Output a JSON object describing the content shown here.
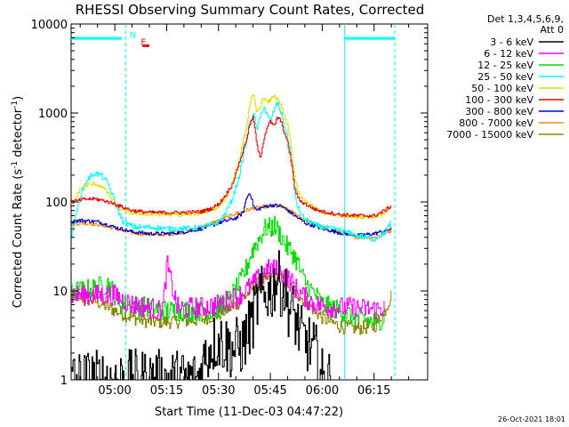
{
  "chart_data": {
    "type": "line",
    "title": "RHESSI Observing Summary Count Rates, Corrected",
    "xlabel": "Start Time (11-Dec-03 04:47:22)",
    "ylabel_main": "Corrected Count Rate (s",
    "ylabel_sup1": "-1",
    "ylabel_mid": " detector",
    "ylabel_sup2": "-1",
    "ylabel_end": ")",
    "yscale": "log",
    "ylim": [
      1,
      10000
    ],
    "xlim_minutes": [
      47.37,
      150.5
    ],
    "x_ticks": [
      {
        "min": 60,
        "label": "05:00"
      },
      {
        "min": 75,
        "label": "05:15"
      },
      {
        "min": 90,
        "label": "05:30"
      },
      {
        "min": 105,
        "label": "05:45"
      },
      {
        "min": 120,
        "label": "06:00"
      },
      {
        "min": 135,
        "label": "06:15"
      }
    ],
    "y_ticks": [
      {
        "value": 1,
        "label": "1"
      },
      {
        "value": 10,
        "label": "10"
      },
      {
        "value": 100,
        "label": "100"
      },
      {
        "value": 1000,
        "label": "1000"
      },
      {
        "value": 10000,
        "label": "10000"
      }
    ],
    "legend_header": [
      "Det 1,3,4,5,6,9,",
      "Att 0"
    ],
    "series": [
      {
        "name": "3 - 6 keV",
        "color": "#000000",
        "x": [
          47.4,
          50,
          55,
          60,
          65,
          70,
          75,
          77,
          78,
          80,
          84,
          86,
          88,
          90,
          94,
          97,
          99,
          100,
          101,
          102,
          103,
          104,
          105,
          106,
          107,
          108,
          109,
          110,
          111,
          112,
          114,
          116,
          118,
          120,
          123
        ],
        "y": [
          1,
          1,
          1,
          1,
          1,
          1,
          1,
          1,
          1,
          1,
          1,
          1.8,
          2.5,
          2.8,
          2.2,
          2.5,
          4,
          5,
          7,
          9,
          8,
          10,
          9,
          12,
          14,
          11,
          10,
          7,
          6,
          5,
          3,
          2.5,
          2,
          1,
          1
        ]
      },
      {
        "name": "6 - 12 keV",
        "color": "#ff00ff",
        "x": [
          47.4,
          60,
          62,
          65,
          70,
          72,
          73,
          74,
          75,
          78,
          80,
          82,
          85,
          88,
          90,
          93,
          96,
          99,
          101,
          103,
          105,
          107,
          108,
          110,
          112,
          114,
          116,
          118,
          120,
          124,
          128,
          132,
          136,
          138
        ],
        "y": [
          9,
          9,
          8,
          7,
          6.5,
          6,
          6,
          7,
          20,
          6.5,
          6.2,
          6.5,
          6.5,
          6.8,
          7,
          8,
          9,
          11,
          13,
          16,
          18,
          17,
          16,
          14,
          11,
          9,
          8,
          7,
          6.8,
          6.5,
          6.5,
          6.3,
          6.2,
          6.5
        ]
      },
      {
        "name": "12 - 25 keV",
        "color": "#00dd00",
        "x": [
          47.4,
          50,
          55,
          58,
          60,
          62,
          65,
          70,
          75,
          80,
          85,
          88,
          90,
          93,
          96,
          98,
          99,
          100,
          101,
          102,
          103,
          104,
          105,
          106,
          107,
          108,
          109,
          110,
          111,
          112,
          113,
          114,
          116,
          118,
          120,
          125,
          130,
          135,
          138
        ],
        "y": [
          10,
          10,
          11,
          12,
          9,
          7,
          7,
          6.5,
          6,
          6,
          6,
          6,
          6.5,
          8,
          12,
          18,
          24,
          30,
          35,
          40,
          48,
          52,
          50,
          55,
          48,
          42,
          35,
          30,
          28,
          24,
          20,
          15,
          11,
          9,
          7,
          6,
          5,
          4.5,
          5
        ]
      },
      {
        "name": "25 - 50 keV",
        "color": "#00ffff",
        "x": [
          47.4,
          50,
          52,
          54,
          56,
          58,
          60,
          62,
          64,
          66,
          70,
          75,
          80,
          85,
          88,
          90,
          92,
          94,
          96,
          98,
          99,
          100,
          101,
          102,
          103,
          104,
          105,
          106,
          107,
          108,
          109,
          110,
          111,
          112,
          113,
          114,
          116,
          118,
          120,
          125,
          130,
          135,
          138,
          140
        ],
        "y": [
          40,
          120,
          180,
          210,
          200,
          160,
          100,
          62,
          55,
          52,
          52,
          50,
          50,
          52,
          55,
          60,
          75,
          110,
          200,
          500,
          800,
          1000,
          650,
          900,
          1200,
          950,
          800,
          1100,
          1300,
          1000,
          700,
          500,
          300,
          120,
          85,
          70,
          60,
          55,
          52,
          48,
          42,
          38,
          45,
          60
        ]
      },
      {
        "name": "50 - 100 keV",
        "color": "#dddd00",
        "x": [
          47.4,
          50,
          52,
          54,
          56,
          58,
          60,
          62,
          65,
          70,
          75,
          80,
          85,
          88,
          90,
          92,
          94,
          96,
          98,
          99,
          100,
          101,
          102,
          103,
          104,
          105,
          106,
          107,
          108,
          109,
          110,
          111,
          112,
          113,
          114,
          116,
          118,
          120,
          125,
          130,
          135,
          138,
          140
        ],
        "y": [
          90,
          140,
          155,
          160,
          150,
          125,
          95,
          80,
          75,
          72,
          72,
          72,
          75,
          80,
          90,
          110,
          160,
          300,
          700,
          1300,
          1600,
          1000,
          1200,
          1500,
          1300,
          1400,
          1600,
          1400,
          1200,
          900,
          700,
          400,
          180,
          130,
          110,
          95,
          85,
          75,
          70,
          68,
          68,
          75,
          95
        ]
      },
      {
        "name": "100 - 300 keV",
        "color": "#ee0000",
        "x": [
          47.4,
          50,
          52,
          54,
          56,
          58,
          60,
          62,
          65,
          70,
          75,
          80,
          85,
          88,
          90,
          92,
          94,
          96,
          98,
          99,
          100,
          101,
          102,
          103,
          104,
          105,
          106,
          107,
          108,
          109,
          110,
          111,
          112,
          113,
          114,
          116,
          118,
          120,
          125,
          130,
          135,
          138,
          140
        ],
        "y": [
          100,
          105,
          108,
          108,
          105,
          100,
          95,
          88,
          80,
          76,
          76,
          76,
          78,
          85,
          95,
          120,
          160,
          280,
          500,
          750,
          900,
          450,
          300,
          500,
          700,
          800,
          700,
          900,
          800,
          600,
          450,
          280,
          140,
          110,
          100,
          90,
          82,
          78,
          72,
          70,
          70,
          80,
          90
        ]
      },
      {
        "name": "300 - 800 keV",
        "color": "#0000cc",
        "x": [
          47.4,
          50,
          55,
          60,
          65,
          70,
          75,
          80,
          85,
          90,
          95,
          97,
          98,
          99,
          100,
          101,
          102,
          104,
          106,
          108,
          110,
          112,
          115,
          120,
          125,
          130,
          135,
          140
        ],
        "y": [
          60,
          62,
          60,
          52,
          46,
          44,
          44,
          46,
          50,
          58,
          66,
          75,
          110,
          130,
          90,
          80,
          85,
          90,
          92,
          90,
          80,
          70,
          58,
          50,
          45,
          42,
          44,
          50
        ]
      },
      {
        "name": "800 - 7000 keV",
        "color": "#ff8800",
        "x": [
          47.4,
          50,
          55,
          60,
          65,
          70,
          75,
          80,
          85,
          90,
          95,
          100,
          105,
          108,
          110,
          113,
          115,
          120,
          125,
          130,
          135,
          140
        ],
        "y": [
          55,
          58,
          56,
          50,
          45,
          43,
          43,
          46,
          52,
          62,
          74,
          85,
          90,
          88,
          82,
          70,
          62,
          52,
          45,
          40,
          40,
          48
        ]
      },
      {
        "name": "7000 - 15000 keV",
        "color": "#888800",
        "x": [
          47.4,
          50,
          55,
          60,
          65,
          70,
          75,
          80,
          85,
          90,
          95,
          98,
          100,
          103,
          105,
          108,
          110,
          113,
          116,
          120,
          125,
          130,
          135,
          138,
          140
        ],
        "y": [
          9,
          8.5,
          7.5,
          6,
          5,
          4.5,
          4.5,
          4.6,
          4.8,
          5.5,
          7,
          9,
          11,
          13,
          14,
          14,
          12,
          9,
          7,
          5,
          4,
          3.8,
          4,
          6,
          9
        ]
      }
    ],
    "annotations": [
      {
        "text": "N",
        "x_min": 63.2,
        "value": 7000,
        "color": "#00ffff"
      },
      {
        "text": "F",
        "x_min": 66.5,
        "value": 5800,
        "color": "#ee0000"
      }
    ],
    "attenuator_bars": [
      {
        "from": 47.4,
        "to": 62.0,
        "value": 6900,
        "color": "#00ffff"
      },
      {
        "from": 126.5,
        "to": 141.0,
        "value": 6900,
        "color": "#00ffff"
      },
      {
        "from": 68.0,
        "to": 70.0,
        "value": 5700,
        "color": "#ee0000"
      }
    ],
    "vertical_lines": [
      {
        "x_min": 63.2,
        "style": "dashed",
        "color": "#00ffff"
      },
      {
        "x_min": 126.5,
        "style": "solid",
        "color": "#00ffff"
      },
      {
        "x_min": 141.0,
        "style": "dashed",
        "color": "#00ffff"
      }
    ]
  },
  "timestamp": "26-Oct-2021 18:01"
}
